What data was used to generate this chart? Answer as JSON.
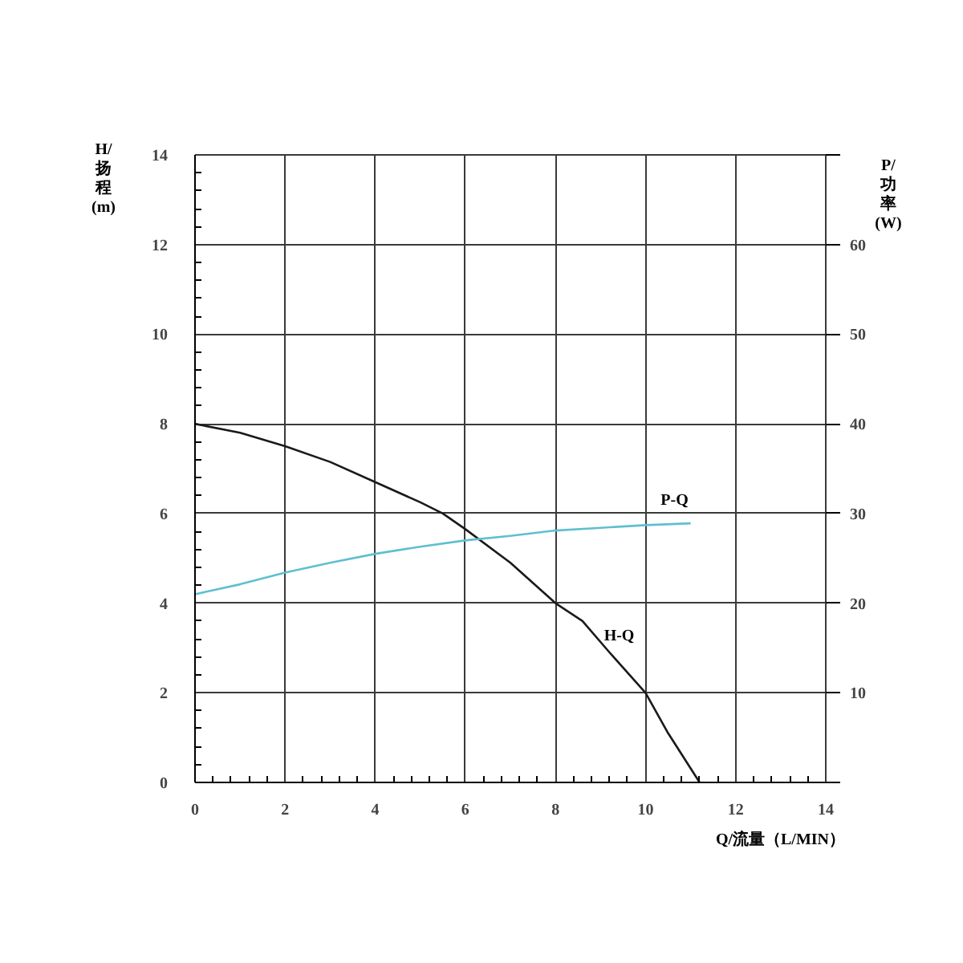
{
  "chart_data": {
    "type": "line",
    "xlabel": "Q/流量（L/MIN）",
    "ylabel": "H/扬程(m)",
    "y2label": "P/功率(W)",
    "xlim": [
      0,
      14
    ],
    "ylim": [
      0,
      14
    ],
    "y2lim": [
      0,
      70
    ],
    "xticks": [
      0,
      2,
      4,
      6,
      8,
      10,
      12,
      14
    ],
    "yticks": [
      0,
      2,
      4,
      6,
      8,
      10,
      12,
      14
    ],
    "y2ticks": [
      {
        "value": 0,
        "label": null
      },
      10,
      20,
      30,
      40,
      50,
      60,
      {
        "value": 70,
        "label": null
      }
    ],
    "grid": true,
    "series": [
      {
        "name": "H-Q",
        "color": "#1a1a1a",
        "x": [
          0,
          1,
          2,
          3,
          4,
          5,
          5.5,
          6,
          7,
          8,
          8.6,
          9.2,
          10,
          10.5,
          11.2
        ],
        "values": [
          8,
          7.8,
          7.5,
          7.15,
          6.7,
          6.25,
          6,
          5.65,
          4.9,
          4,
          3.6,
          2.9,
          2,
          1.1,
          0
        ]
      },
      {
        "name": "P-Q",
        "color": "#5fbfcf",
        "axis": "y2",
        "x": [
          0,
          1,
          2,
          3,
          4,
          5,
          6,
          7,
          8,
          9,
          10,
          11
        ],
        "values": [
          21,
          22.1,
          23.4,
          24.5,
          25.5,
          26.3,
          27,
          27.5,
          28.1,
          28.4,
          28.7,
          28.9
        ]
      }
    ]
  }
}
